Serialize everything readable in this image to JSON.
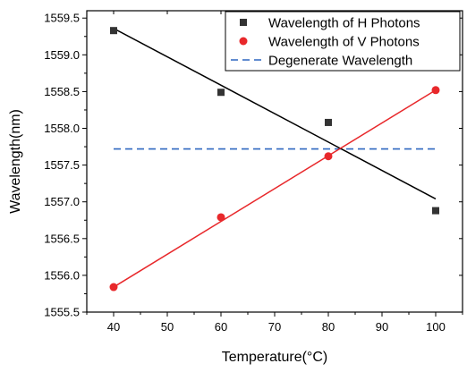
{
  "chart_data": {
    "type": "scatter",
    "xlabel": "Temperature(°C)",
    "ylabel": "Wavelength(nm)",
    "xlim": [
      35,
      105
    ],
    "ylim": [
      1555.5,
      1559.6
    ],
    "x_ticks": [
      40,
      50,
      60,
      70,
      80,
      90,
      100
    ],
    "x_tick_labels": [
      "40",
      "50",
      "60",
      "70",
      "80",
      "90",
      "100"
    ],
    "y_ticks": [
      1555.5,
      1556.0,
      1556.5,
      1557.0,
      1557.5,
      1558.0,
      1558.5,
      1559.0,
      1559.5
    ],
    "y_tick_labels": [
      "1555.5",
      "1556.0",
      "1556.5",
      "1557.0",
      "1557.5",
      "1558.0",
      "1558.5",
      "1559.0",
      "1559.5"
    ],
    "grid": false,
    "legend_position": "top-right",
    "series": [
      {
        "name": "Wavelength of H Photons",
        "marker": "square",
        "color": "#333333",
        "x": [
          40,
          60,
          80,
          100
        ],
        "y": [
          1559.33,
          1558.49,
          1558.08,
          1556.88
        ],
        "fit": {
          "color": "#000000",
          "x": [
            40,
            100
          ],
          "y": [
            1559.36,
            1557.04
          ]
        }
      },
      {
        "name": "Wavelength of V Photons",
        "marker": "circle",
        "color": "#e8282b",
        "x": [
          40,
          60,
          80,
          100
        ],
        "y": [
          1555.84,
          1556.79,
          1557.62,
          1558.52
        ],
        "fit": {
          "color": "#e8282b",
          "x": [
            40,
            100
          ],
          "y": [
            1555.84,
            1558.52
          ]
        }
      },
      {
        "name": "Degenerate Wavelength",
        "style": "dashed-line",
        "color": "#2f67c0",
        "x": [
          40,
          100
        ],
        "y": [
          1557.72,
          1557.72
        ]
      }
    ]
  }
}
